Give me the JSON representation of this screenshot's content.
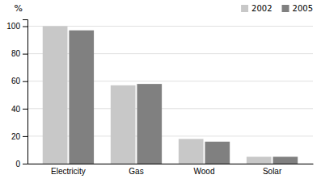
{
  "chart_data": {
    "type": "bar",
    "categories": [
      "Electricity",
      "Gas",
      "Wood",
      "Solar"
    ],
    "series": [
      {
        "name": "2002",
        "color": "#c8c8c8",
        "values": [
          100,
          57,
          18,
          5
        ]
      },
      {
        "name": "2005",
        "color": "#808080",
        "values": [
          97,
          58,
          16,
          5
        ]
      }
    ],
    "ylabel": "%",
    "ylim": [
      0,
      105
    ],
    "yticks": [
      0,
      20,
      40,
      60,
      80,
      100
    ],
    "grid": true,
    "legend": "top-right"
  }
}
